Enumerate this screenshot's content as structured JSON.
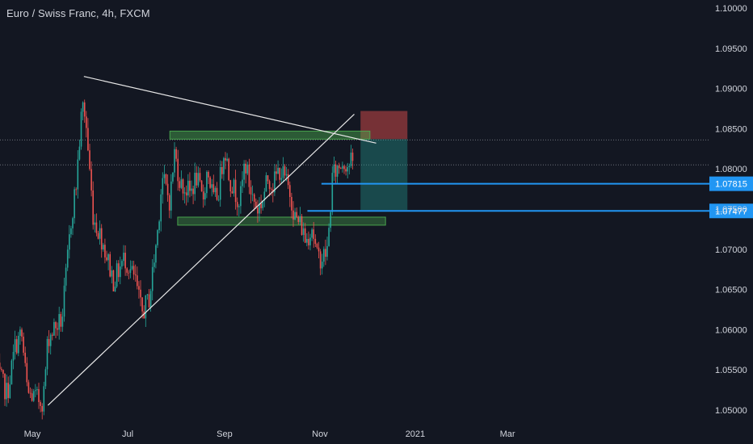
{
  "header": {
    "symbol_title": "Euro / Swiss Franc, 4h, FXCM"
  },
  "chart_data": {
    "type": "candlestick",
    "title": "Euro / Swiss Franc, 4h, FXCM",
    "timeframe": "4h",
    "source": "FXCM",
    "x_ticks": [
      "May",
      "Jul",
      "Sep",
      "Nov",
      "2021",
      "Mar"
    ],
    "y_ticks": [
      "1.10000",
      "1.09500",
      "1.09000",
      "1.08500",
      "1.08000",
      "1.07500",
      "1.07000",
      "1.06500",
      "1.06000",
      "1.05500",
      "1.05000"
    ],
    "ylim": [
      1.0486,
      1.1008
    ],
    "price_lines": [
      {
        "value": 1.07815,
        "label": "1.07815",
        "color": "#2196f3"
      },
      {
        "value": 1.07477,
        "label": "1.07477",
        "color": "#2196f3"
      }
    ],
    "dotted_levels": [
      1.0836,
      1.0805
    ],
    "colors": {
      "up": "#26a69a",
      "down": "#ef5350",
      "background": "#131722",
      "axis_text": "#d1d4dc"
    },
    "path_points": [
      [
        "2020-04-08",
        1.055
      ],
      [
        "2020-04-15",
        1.052
      ],
      [
        "2020-04-20",
        1.058
      ],
      [
        "2020-04-24",
        1.0595
      ],
      [
        "2020-04-28",
        1.052
      ],
      [
        "2020-05-05",
        1.0513
      ],
      [
        "2020-05-08",
        1.0512
      ],
      [
        "2020-05-11",
        1.059
      ],
      [
        "2020-05-15",
        1.0602
      ],
      [
        "2020-05-20",
        1.0612
      ],
      [
        "2020-05-26",
        1.074
      ],
      [
        "2020-05-29",
        1.078
      ],
      [
        "2020-06-02",
        1.088
      ],
      [
        "2020-06-04",
        1.0865
      ],
      [
        "2020-06-09",
        1.074
      ],
      [
        "2020-06-15",
        1.071
      ],
      [
        "2020-06-22",
        1.066
      ],
      [
        "2020-06-29",
        1.069
      ],
      [
        "2020-07-06",
        1.066
      ],
      [
        "2020-07-10",
        1.062
      ],
      [
        "2020-07-15",
        1.064
      ],
      [
        "2020-07-20",
        1.072
      ],
      [
        "2020-07-23",
        1.079
      ],
      [
        "2020-07-28",
        1.076
      ],
      [
        "2020-07-31",
        1.082
      ],
      [
        "2020-08-04",
        1.078
      ],
      [
        "2020-08-10",
        1.077
      ],
      [
        "2020-08-14",
        1.079
      ],
      [
        "2020-08-18",
        1.076
      ],
      [
        "2020-08-21",
        1.08
      ],
      [
        "2020-08-25",
        1.076
      ],
      [
        "2020-08-28",
        1.077
      ],
      [
        "2020-09-01",
        1.083
      ],
      [
        "2020-09-04",
        1.079
      ],
      [
        "2020-09-08",
        1.077
      ],
      [
        "2020-09-11",
        1.076
      ],
      [
        "2020-09-14",
        1.081
      ],
      [
        "2020-09-18",
        1.077
      ],
      [
        "2020-09-22",
        1.075
      ],
      [
        "2020-09-25",
        1.076
      ],
      [
        "2020-09-29",
        1.079
      ],
      [
        "2020-10-02",
        1.078
      ],
      [
        "2020-10-06",
        1.08
      ],
      [
        "2020-10-09",
        1.079
      ],
      [
        "2020-10-13",
        1.077
      ],
      [
        "2020-10-16",
        1.074
      ],
      [
        "2020-10-20",
        1.073
      ],
      [
        "2020-10-23",
        1.071
      ],
      [
        "2020-10-27",
        1.073
      ],
      [
        "2020-10-30",
        1.069
      ],
      [
        "2020-11-03",
        1.069
      ],
      [
        "2020-11-06",
        1.07
      ],
      [
        "2020-11-09",
        1.079
      ],
      [
        "2020-11-12",
        1.08
      ],
      [
        "2020-11-16",
        1.081
      ],
      [
        "2020-11-19",
        1.0805
      ],
      [
        "2020-11-23",
        1.081
      ]
    ]
  },
  "annotations": {
    "position_tool": {
      "stop_loss": 1.0872,
      "entry": 1.0837,
      "target": 1.0749
    },
    "support_zone": {
      "low": 1.073,
      "high": 1.074
    },
    "resistance_zone": {
      "low": 1.0837,
      "high": 1.0847
    }
  }
}
